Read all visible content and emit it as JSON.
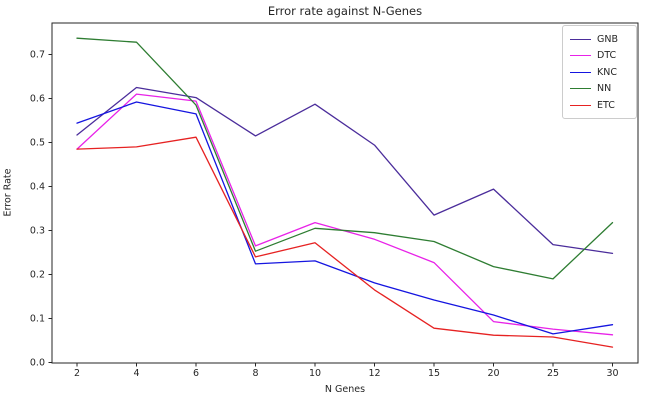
{
  "figure": {
    "title": "Error rate against N-Genes",
    "background_color": "#ffffff",
    "axis_color": "#262626",
    "legend_border_color": "#cccccc"
  },
  "chart_data": {
    "type": "line",
    "title": "Error rate against N-Genes",
    "xlabel": "N Genes",
    "ylabel": "Error Rate",
    "x_tick_labels": [
      "2",
      "4",
      "6",
      "8",
      "10",
      "12",
      "15",
      "20",
      "25",
      "30"
    ],
    "y_tick_labels": [
      "0.0",
      "0.1",
      "0.2",
      "0.3",
      "0.4",
      "0.5",
      "0.6",
      "0.7"
    ],
    "ylim": [
      0.0,
      0.772
    ],
    "grid": false,
    "legend_position": "upper right",
    "categories": [
      2,
      4,
      6,
      8,
      10,
      12,
      15,
      20,
      25,
      30
    ],
    "series": [
      {
        "name": "GNB",
        "color": "#4b2d9b",
        "values": [
          0.517,
          0.625,
          0.602,
          0.515,
          0.587,
          0.494,
          0.335,
          0.394,
          0.268,
          0.248
        ]
      },
      {
        "name": "DTC",
        "color": "#e822e8",
        "values": [
          0.485,
          0.61,
          0.594,
          0.265,
          0.318,
          0.28,
          0.227,
          0.093,
          0.076,
          0.063
        ]
      },
      {
        "name": "KNC",
        "color": "#1515e0",
        "values": [
          0.544,
          0.592,
          0.565,
          0.224,
          0.231,
          0.181,
          0.142,
          0.108,
          0.065,
          0.086
        ]
      },
      {
        "name": "NN",
        "color": "#2e7d32",
        "values": [
          0.737,
          0.728,
          0.585,
          0.253,
          0.305,
          0.295,
          0.275,
          0.218,
          0.19,
          0.318
        ]
      },
      {
        "name": "ETC",
        "color": "#e62222",
        "values": [
          0.485,
          0.49,
          0.512,
          0.24,
          0.272,
          0.165,
          0.078,
          0.062,
          0.058,
          0.035
        ]
      }
    ]
  }
}
